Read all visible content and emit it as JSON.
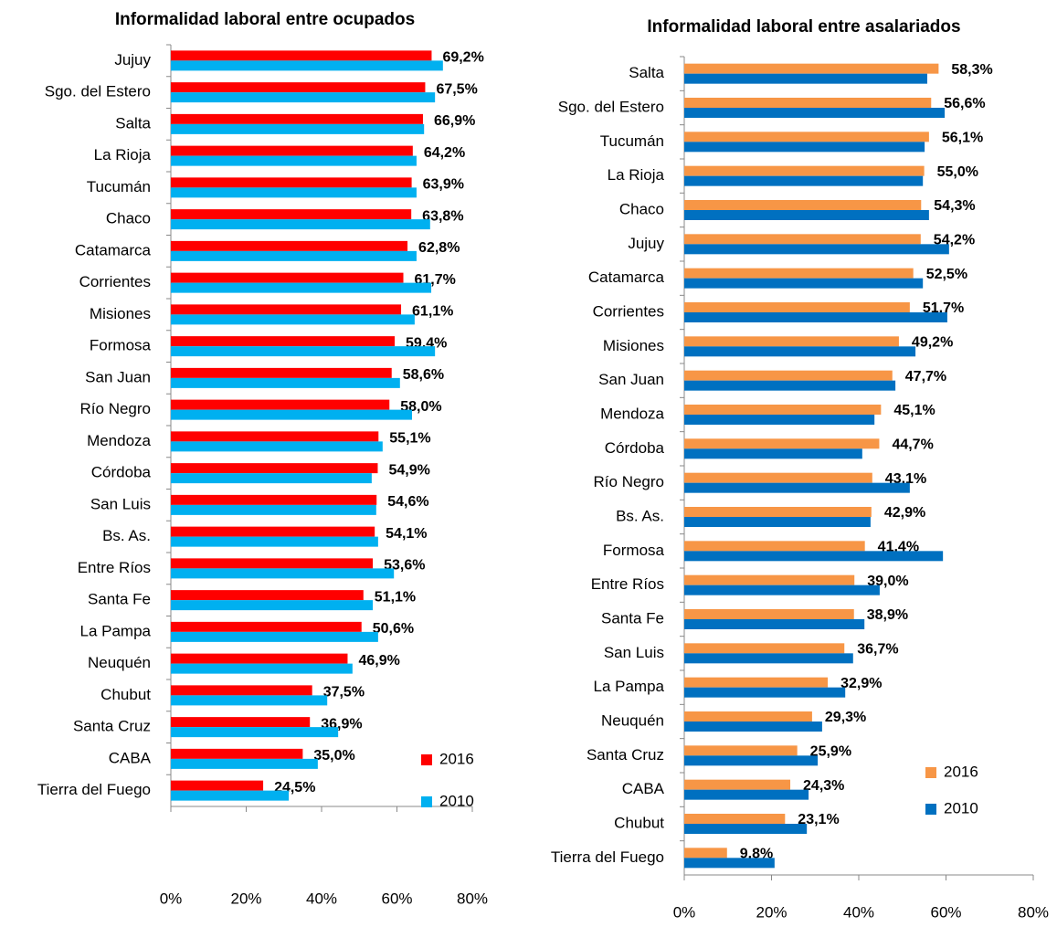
{
  "chart_data": [
    {
      "type": "bar",
      "orientation": "horizontal",
      "title": "Informalidad laboral entre ocupados",
      "categories": [
        "Jujuy",
        "Sgo. del Estero",
        "Salta",
        "La Rioja",
        "Tucumán",
        "Chaco",
        "Catamarca",
        "Corrientes",
        "Misiones",
        "Formosa",
        "San Juan",
        "Río Negro",
        "Mendoza",
        "Córdoba",
        "San Luis",
        "Bs. As.",
        "Entre Ríos",
        "Santa Fe",
        "La Pampa",
        "Neuquén",
        "Chubut",
        "Santa Cruz",
        "CABA",
        "Tierra del Fuego"
      ],
      "series": [
        {
          "name": "2016",
          "color": "#ff0000",
          "values": [
            69.2,
            67.5,
            66.9,
            64.2,
            63.9,
            63.8,
            62.8,
            61.7,
            61.1,
            59.4,
            58.6,
            58.0,
            55.1,
            54.9,
            54.6,
            54.1,
            53.6,
            51.1,
            50.6,
            46.9,
            37.5,
            36.9,
            35.0,
            24.5
          ],
          "value_labels": [
            "69,2%",
            "67,5%",
            "66,9%",
            "64,2%",
            "63,9%",
            "63,8%",
            "62,8%",
            "61,7%",
            "61,1%",
            "59,4%",
            "58,6%",
            "58,0%",
            "55,1%",
            "54,9%",
            "54,6%",
            "54,1%",
            "53,6%",
            "51,1%",
            "50,6%",
            "46,9%",
            "37,5%",
            "36,9%",
            "35,0%",
            "24,5%"
          ],
          "label_color": "#000000"
        },
        {
          "name": "2010",
          "color": "#00b0f0",
          "values": [
            72.2,
            70.1,
            67.2,
            65.2,
            65.2,
            68.8,
            65.2,
            69.1,
            64.7,
            70.1,
            60.8,
            64.0,
            56.2,
            53.3,
            54.5,
            55.0,
            59.2,
            53.6,
            55.0,
            48.2,
            41.5,
            44.4,
            39.0,
            31.3
          ]
        }
      ],
      "xlim": [
        0,
        80
      ],
      "xticks": [
        {
          "value": 0,
          "label": "0%"
        },
        {
          "value": 20,
          "label": "20%"
        },
        {
          "value": 40,
          "label": "40%"
        },
        {
          "value": 60,
          "label": "60%"
        },
        {
          "value": 80,
          "label": "80%"
        }
      ]
    },
    {
      "type": "bar",
      "orientation": "horizontal",
      "title": "Informalidad laboral entre asalariados",
      "categories": [
        "Salta",
        "Sgo. del Estero",
        "Tucumán",
        "La Rioja",
        "Chaco",
        "Jujuy",
        "Catamarca",
        "Corrientes",
        "Misiones",
        "San Juan",
        "Mendoza",
        "Córdoba",
        "Río Negro",
        "Bs. As.",
        "Formosa",
        "Entre Ríos",
        "Santa Fe",
        "San Luis",
        "La Pampa",
        "Neuquén",
        "Santa Cruz",
        "CABA",
        "Chubut",
        "Tierra del Fuego"
      ],
      "series": [
        {
          "name": "2016",
          "color": "#f79646",
          "values": [
            58.3,
            56.6,
            56.1,
            55.0,
            54.3,
            54.2,
            52.5,
            51.7,
            49.2,
            47.7,
            45.1,
            44.7,
            43.1,
            42.9,
            41.4,
            39.0,
            38.9,
            36.7,
            32.9,
            29.3,
            25.9,
            24.3,
            23.1,
            9.8
          ],
          "value_labels": [
            "58,3%",
            "56,6%",
            "56,1%",
            "55,0%",
            "54,3%",
            "54,2%",
            "52,5%",
            "51,7%",
            "49,2%",
            "47,7%",
            "45,1%",
            "44,7%",
            "43,1%",
            "42,9%",
            "41,4%",
            "39,0%",
            "38,9%",
            "36,7%",
            "32,9%",
            "29,3%",
            "25,9%",
            "24,3%",
            "23,1%",
            "9,8%"
          ],
          "label_color": "#953735"
        },
        {
          "name": "2010",
          "color": "#0070c0",
          "values": [
            55.7,
            59.7,
            55.1,
            54.7,
            56.1,
            60.7,
            54.7,
            60.3,
            53.0,
            48.4,
            43.6,
            40.8,
            51.7,
            42.7,
            59.3,
            44.8,
            41.3,
            38.7,
            36.9,
            31.6,
            30.6,
            28.5,
            28.1,
            20.7
          ]
        }
      ],
      "xlim": [
        0,
        80
      ],
      "xticks": [
        {
          "value": 0,
          "label": "0%"
        },
        {
          "value": 20,
          "label": "20%"
        },
        {
          "value": 40,
          "label": "40%"
        },
        {
          "value": 60,
          "label": "60%"
        },
        {
          "value": 80,
          "label": "80%"
        }
      ]
    }
  ]
}
